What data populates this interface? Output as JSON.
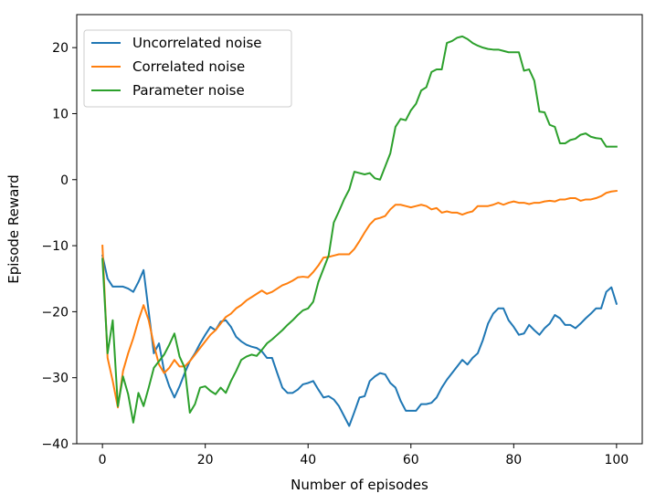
{
  "chart_data": {
    "type": "line",
    "title": "",
    "xlabel": "Number of episodes",
    "ylabel": "Episode Reward",
    "xlim": [
      -5,
      105
    ],
    "ylim": [
      -40,
      25
    ],
    "xticks": [
      0,
      20,
      40,
      60,
      80,
      100
    ],
    "xtick_labels": [
      "0",
      "20",
      "40",
      "60",
      "80",
      "100"
    ],
    "yticks": [
      -40,
      -30,
      -20,
      -10,
      0,
      10,
      20
    ],
    "ytick_labels": [
      "−40",
      "−30",
      "−20",
      "−10",
      "0",
      "10",
      "20"
    ],
    "grid": false,
    "legend_position": "top-left",
    "series": [
      {
        "name": "Uncorrelated noise",
        "color": "#1f77b4",
        "x": [
          0,
          1,
          2,
          3,
          4,
          5,
          6,
          7,
          8,
          9,
          10,
          11,
          12,
          13,
          14,
          15,
          16,
          17,
          18,
          19,
          20,
          21,
          22,
          23,
          24,
          25,
          26,
          27,
          28,
          29,
          30,
          31,
          32,
          33,
          34,
          35,
          36,
          37,
          38,
          39,
          40,
          41,
          42,
          43,
          44,
          45,
          46,
          47,
          48,
          49,
          50,
          51,
          52,
          53,
          54,
          55,
          56,
          57,
          58,
          59,
          60,
          61,
          62,
          63,
          64,
          65,
          66,
          67,
          68,
          69,
          70,
          71,
          72,
          73,
          74,
          75,
          76,
          77,
          78,
          79,
          80,
          81,
          82,
          83,
          84,
          85,
          86,
          87,
          88,
          89,
          90,
          91,
          92,
          93,
          94,
          95,
          96,
          97,
          98,
          99,
          100
        ],
        "values": [
          -11.5,
          -15,
          -16.2,
          -16.2,
          -16.2,
          -16.5,
          -17,
          -15.5,
          -13.7,
          -20,
          -26.3,
          -24.8,
          -29,
          -31.3,
          -33,
          -31.3,
          -29.3,
          -27.5,
          -26.3,
          -24.8,
          -23.5,
          -22.3,
          -22.8,
          -21.5,
          -21.3,
          -22.3,
          -23.8,
          -24.5,
          -25,
          -25.3,
          -25.5,
          -26,
          -27,
          -27,
          -29.3,
          -31.5,
          -32.3,
          -32.3,
          -31.8,
          -31,
          -30.8,
          -30.5,
          -31.8,
          -33,
          -32.8,
          -33.3,
          -34.3,
          -35.8,
          -37.3,
          -35.2,
          -33,
          -32.8,
          -30.5,
          -29.8,
          -29.3,
          -29.5,
          -30.8,
          -31.5,
          -33.5,
          -35,
          -35,
          -35,
          -34,
          -34,
          -33.8,
          -33,
          -31.5,
          -30.3,
          -29.3,
          -28.3,
          -27.3,
          -28,
          -27,
          -26.3,
          -24.3,
          -21.8,
          -20.3,
          -19.5,
          -19.5,
          -21.3,
          -22.3,
          -23.5,
          -23.3,
          -22,
          -22.8,
          -23.5,
          -22.5,
          -21.8,
          -20.5,
          -21,
          -22,
          -22,
          -22.5,
          -21.8,
          -21,
          -20.3,
          -19.5,
          -19.5,
          -17,
          -16.3,
          -18.8
        ]
      },
      {
        "name": "Correlated noise",
        "color": "#ff7f0e",
        "x": [
          0,
          1,
          2,
          3,
          4,
          5,
          6,
          7,
          8,
          9,
          10,
          11,
          12,
          13,
          14,
          15,
          16,
          17,
          18,
          19,
          20,
          21,
          22,
          23,
          24,
          25,
          26,
          27,
          28,
          29,
          30,
          31,
          32,
          33,
          34,
          35,
          36,
          37,
          38,
          39,
          40,
          41,
          42,
          43,
          44,
          45,
          46,
          47,
          48,
          49,
          50,
          51,
          52,
          53,
          54,
          55,
          56,
          57,
          58,
          59,
          60,
          61,
          62,
          63,
          64,
          65,
          66,
          67,
          68,
          69,
          70,
          71,
          72,
          73,
          74,
          75,
          76,
          77,
          78,
          79,
          80,
          81,
          82,
          83,
          84,
          85,
          86,
          87,
          88,
          89,
          90,
          91,
          92,
          93,
          94,
          95,
          96,
          97,
          98,
          99,
          100
        ],
        "values": [
          -10,
          -27,
          -30.5,
          -34.5,
          -29,
          -26.3,
          -24,
          -21.3,
          -19,
          -21.3,
          -25,
          -28,
          -29.3,
          -28.5,
          -27.3,
          -28.3,
          -28.3,
          -27.5,
          -26.5,
          -25.5,
          -24.5,
          -23.5,
          -22.8,
          -21.8,
          -20.8,
          -20.3,
          -19.5,
          -19,
          -18.3,
          -17.8,
          -17.3,
          -16.8,
          -17.3,
          -17,
          -16.5,
          -16,
          -15.7,
          -15.3,
          -14.8,
          -14.7,
          -14.8,
          -14,
          -13,
          -11.8,
          -11.7,
          -11.5,
          -11.3,
          -11.3,
          -11.3,
          -10.5,
          -9.3,
          -8,
          -6.8,
          -6,
          -5.8,
          -5.5,
          -4.5,
          -3.8,
          -3.8,
          -4,
          -4.2,
          -4,
          -3.8,
          -4,
          -4.5,
          -4.3,
          -5,
          -4.8,
          -5,
          -5,
          -5.3,
          -5,
          -4.8,
          -4,
          -4,
          -4,
          -3.8,
          -3.5,
          -3.8,
          -3.5,
          -3.3,
          -3.5,
          -3.5,
          -3.7,
          -3.5,
          -3.5,
          -3.3,
          -3.2,
          -3.3,
          -3,
          -3,
          -2.8,
          -2.8,
          -3.2,
          -3,
          -3,
          -2.8,
          -2.5,
          -2,
          -1.8,
          -1.7
        ]
      },
      {
        "name": "Parameter noise",
        "color": "#2ca02c",
        "x": [
          0,
          1,
          2,
          3,
          4,
          5,
          6,
          7,
          8,
          9,
          10,
          11,
          12,
          13,
          14,
          15,
          16,
          17,
          18,
          19,
          20,
          21,
          22,
          23,
          24,
          25,
          26,
          27,
          28,
          29,
          30,
          31,
          32,
          33,
          34,
          35,
          36,
          37,
          38,
          39,
          40,
          41,
          42,
          43,
          44,
          45,
          46,
          47,
          48,
          49,
          50,
          51,
          52,
          53,
          54,
          55,
          56,
          57,
          58,
          59,
          60,
          61,
          62,
          63,
          64,
          65,
          66,
          67,
          68,
          69,
          70,
          71,
          72,
          73,
          74,
          75,
          76,
          77,
          78,
          79,
          80,
          81,
          82,
          83,
          84,
          85,
          86,
          87,
          88,
          89,
          90,
          91,
          92,
          93,
          94,
          95,
          96,
          97,
          98,
          99,
          100
        ],
        "values": [
          -12,
          -26.3,
          -21.3,
          -34.3,
          -29.8,
          -32.5,
          -36.8,
          -32.3,
          -34.3,
          -31.5,
          -28.5,
          -27.5,
          -26.5,
          -25,
          -23.3,
          -26.8,
          -28.5,
          -35.3,
          -34,
          -31.5,
          -31.3,
          -32,
          -32.5,
          -31.5,
          -32.3,
          -30.5,
          -29,
          -27.3,
          -26.8,
          -26.5,
          -26.7,
          -25.8,
          -24.8,
          -24.2,
          -23.5,
          -22.8,
          -22,
          -21.3,
          -20.5,
          -19.8,
          -19.5,
          -18.5,
          -15.5,
          -13.5,
          -11.5,
          -6.5,
          -4.8,
          -3,
          -1.5,
          1.2,
          1,
          0.8,
          1,
          0.2,
          0,
          2,
          4,
          8,
          9.2,
          9,
          10.5,
          11.5,
          13.5,
          14,
          16.3,
          16.7,
          16.7,
          20.7,
          21,
          21.5,
          21.7,
          21.3,
          20.7,
          20.3,
          20,
          19.8,
          19.7,
          19.7,
          19.5,
          19.3,
          19.3,
          19.3,
          16.5,
          16.7,
          15,
          10.3,
          10.2,
          8.3,
          8,
          5.5,
          5.5,
          6,
          6.2,
          6.8,
          7,
          6.5,
          6.3,
          6.2,
          5,
          5,
          5
        ]
      }
    ]
  }
}
